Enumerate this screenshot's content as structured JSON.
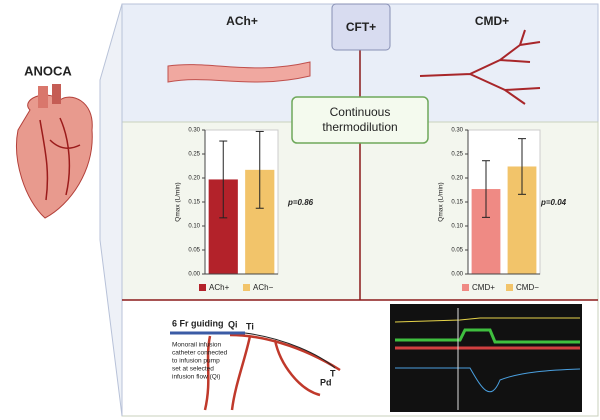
{
  "left": {
    "title": "ANOCA"
  },
  "top": {
    "left_label": "ACh+",
    "center_label": "CFT+",
    "right_label": "CMD+",
    "method_lines": [
      "Continuous",
      "thermodilution"
    ]
  },
  "chart_data": [
    {
      "type": "bar",
      "ylabel": "Qmax (L/min)",
      "categories": [
        "ACh+",
        "ACh−"
      ],
      "values": [
        0.197,
        0.217
      ],
      "errors": [
        0.08,
        0.08
      ],
      "colors": [
        "#b3222a",
        "#f2c46a"
      ],
      "annotation": "p=0.86",
      "ylim": [
        0,
        0.3
      ],
      "yticks": [
        {
          "value": 0,
          "label": "0.00"
        },
        {
          "value": 0.05,
          "label": "0.05"
        },
        {
          "value": 0.1,
          "label": "0.10"
        },
        {
          "value": 0.15,
          "label": "0.15"
        },
        {
          "value": 0.2,
          "label": "0.20"
        },
        {
          "value": 0.25,
          "label": "0.25"
        },
        {
          "value": 0.3,
          "label": "0.30"
        }
      ]
    },
    {
      "type": "bar",
      "ylabel": "Qmax (L/min)",
      "categories": [
        "CMD+",
        "CMD−"
      ],
      "values": [
        0.177,
        0.224
      ],
      "errors": [
        0.059,
        0.058
      ],
      "colors": [
        "#ef8a84",
        "#f2c46a"
      ],
      "annotation": "p=0.04",
      "ylim": [
        0,
        0.3
      ],
      "yticks": [
        {
          "value": 0,
          "label": "0.00"
        },
        {
          "value": 0.05,
          "label": "0.05"
        },
        {
          "value": 0.1,
          "label": "0.10"
        },
        {
          "value": 0.15,
          "label": "0.15"
        },
        {
          "value": 0.2,
          "label": "0.20"
        },
        {
          "value": 0.25,
          "label": "0.25"
        },
        {
          "value": 0.3,
          "label": "0.30"
        }
      ]
    }
  ],
  "bottom": {
    "guide": "6 Fr guiding",
    "qi": "Qi",
    "ti": "Ti",
    "t": "T",
    "pd": "Pd",
    "caption_lines": [
      "Monorail infusion",
      "catheter connected",
      "to infusion pump",
      "set at selected",
      "infusion flow (Qi)"
    ]
  }
}
